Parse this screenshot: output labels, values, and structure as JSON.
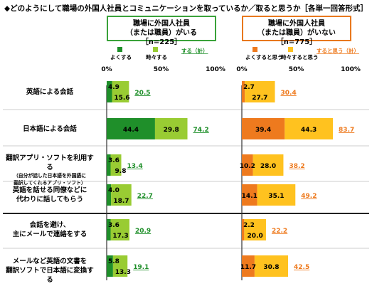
{
  "title": "◆どのようにして職場の外国人社員とコミュニケーションを取っているか／取ると思うか［各単一回答形式］",
  "panels": [
    {
      "header_line1": "職場に外国人社員",
      "header_line2": "（または職員）がいる［n=225］",
      "legend": [
        "よくする",
        "時々する",
        "する（計）"
      ],
      "colors": {
        "often": "#1f8f2a",
        "sometimes": "#99cc33",
        "total": "#1f8f2a"
      }
    },
    {
      "header_line1": "職場に外国人社員",
      "header_line2": "（または職員）がいない［n=775］",
      "legend": [
        "よくすると思う",
        "時々すると思う",
        "すると思う（計）"
      ],
      "colors": {
        "often": "#ee7a1e",
        "sometimes": "#ffc21f",
        "total": "#ee7a1e"
      }
    }
  ],
  "ticks": [
    "0%",
    "50%",
    "100%"
  ],
  "categories": [
    {
      "l1": [
        "英語による会話"
      ],
      "l2": []
    },
    {
      "l1": [
        "日本語による会話"
      ],
      "l2": []
    },
    {
      "l1": [
        "翻訳アプリ・ソフトを利用する"
      ],
      "l2": [
        "（自分が話した日本語を外国語に",
        "翻訳してくれるアプリ・ソフト）"
      ]
    },
    {
      "l1": [
        "英語を話せる同僚などに",
        "代わりに話してもらう"
      ],
      "l2": []
    },
    {
      "l1": [
        "会話を避け、",
        "主にメールで連絡をする"
      ],
      "l2": []
    },
    {
      "l1": [
        "メールなど英語の文書を",
        "翻訳ソフトで日本語に変換する"
      ],
      "l2": []
    }
  ],
  "chart_data": [
    {
      "type": "bar",
      "title": "職場に外国人社員（または職員）がいる［n=225］",
      "categories": [
        "英語による会話",
        "日本語による会話",
        "翻訳アプリ・ソフトを利用する",
        "英語を話せる同僚などに代わりに話してもらう",
        "会話を避け、主にメールで連絡をする",
        "メールなど英語の文書を翻訳ソフトで日本語に変換する"
      ],
      "series": [
        {
          "name": "よくする",
          "values": [
            4.9,
            44.4,
            3.6,
            4.0,
            3.6,
            5.8
          ]
        },
        {
          "name": "時々する",
          "values": [
            15.6,
            29.8,
            9.8,
            18.7,
            17.3,
            13.3
          ]
        },
        {
          "name": "する（計）",
          "values": [
            20.5,
            74.2,
            13.4,
            22.7,
            20.9,
            19.1
          ]
        }
      ],
      "xlim": [
        0,
        100
      ]
    },
    {
      "type": "bar",
      "title": "職場に外国人社員（または職員）がいない［n=775］",
      "categories": [
        "英語による会話",
        "日本語による会話",
        "翻訳アプリ・ソフトを利用する",
        "英語を話せる同僚などに代わりに話してもらう",
        "会話を避け、主にメールで連絡をする",
        "メールなど英語の文書を翻訳ソフトで日本語に変換する"
      ],
      "series": [
        {
          "name": "よくすると思う",
          "values": [
            2.7,
            39.4,
            10.2,
            14.1,
            2.2,
            11.7
          ]
        },
        {
          "name": "時々すると思う",
          "values": [
            27.7,
            44.3,
            28.0,
            35.1,
            20.0,
            30.8
          ]
        },
        {
          "name": "すると思う（計）",
          "values": [
            30.4,
            83.7,
            38.2,
            49.2,
            22.2,
            42.5
          ]
        }
      ],
      "xlim": [
        0,
        100
      ]
    }
  ]
}
